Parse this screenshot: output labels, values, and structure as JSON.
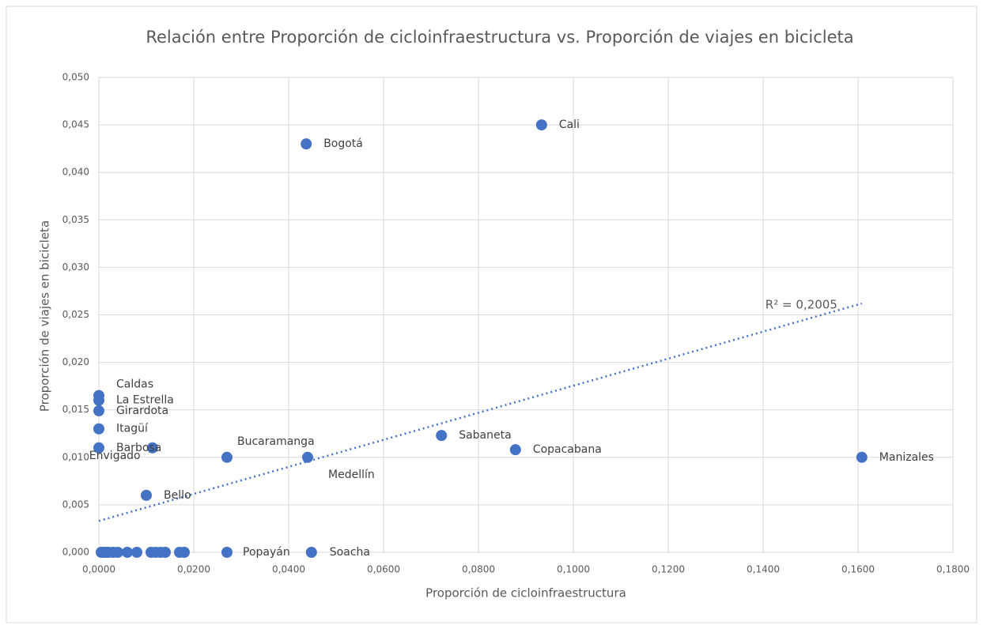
{
  "chart_data": {
    "type": "scatter",
    "title": "Relación entre Proporción de cicloinfraestructura vs. Proporción de viajes en bicicleta",
    "x_label": "Proporción de cicloinfraestructura",
    "y_label": "Proporción de viajes en bicicleta",
    "color": "#4472c4",
    "labels": [
      "Cali",
      "Bogotá",
      "Manizales",
      "Copacabana",
      "Sabaneta",
      "Medellín",
      "Bucaramanga",
      "Envigado",
      "Bello",
      "Caldas",
      "La Estrella",
      "Girardota",
      "Itagüí",
      "Barbosa",
      "Soacha",
      "Popayán",
      null,
      null,
      null,
      null,
      null,
      null,
      null,
      null,
      null,
      null,
      null,
      null,
      null,
      null
    ],
    "x": [
      0.0933,
      0.0437,
      0.1608,
      0.0878,
      0.0722,
      0.044,
      0.027,
      0.0113,
      0.01,
      0,
      0,
      0,
      0,
      0,
      0.0448,
      0.027,
      0.0005,
      0.001,
      0.0015,
      0.002,
      0.003,
      0.004,
      0.006,
      0.008,
      0.011,
      0.012,
      0.013,
      0.014,
      0.017,
      0.018
    ],
    "values": [
      0.045,
      0.043,
      0.01,
      0.0108,
      0.0123,
      0.01,
      0.01,
      0.011,
      0.006,
      0.0165,
      0.016,
      0.0149,
      0.013,
      0.011,
      0,
      0,
      0,
      0,
      0,
      0,
      0,
      0,
      0,
      0,
      0,
      0,
      0,
      0,
      0,
      0
    ],
    "trendline": {
      "x": [
        0,
        0.1608
      ],
      "y": [
        0.0033,
        0.0262
      ],
      "annotation": "R² = 0,2005"
    },
    "xlim": [
      0,
      0.18
    ],
    "xticks": [
      {
        "value": 0,
        "label": "0,0000"
      },
      {
        "value": 0.02,
        "label": "0,0200"
      },
      {
        "value": 0.04,
        "label": "0,0400"
      },
      {
        "value": 0.06,
        "label": "0,0600"
      },
      {
        "value": 0.08,
        "label": "0,0800"
      },
      {
        "value": 0.1,
        "label": "0,1000"
      },
      {
        "value": 0.12,
        "label": "0,1200"
      },
      {
        "value": 0.14,
        "label": "0,1400"
      },
      {
        "value": 0.16,
        "label": "0,1600"
      },
      {
        "value": 0.18,
        "label": "0,1800"
      }
    ],
    "ylim": [
      0,
      0.05
    ],
    "yticks": [
      {
        "value": 0,
        "label": "0,000"
      },
      {
        "value": 0.005,
        "label": "0,005"
      },
      {
        "value": 0.01,
        "label": "0,010"
      },
      {
        "value": 0.015,
        "label": "0,015"
      },
      {
        "value": 0.02,
        "label": "0,020"
      },
      {
        "value": 0.025,
        "label": "0,025"
      },
      {
        "value": 0.03,
        "label": "0,030"
      },
      {
        "value": 0.035,
        "label": "0,035"
      },
      {
        "value": 0.04,
        "label": "0,040"
      },
      {
        "value": 0.045,
        "label": "0,045"
      },
      {
        "value": 0.05,
        "label": "0,050"
      }
    ],
    "grid": true
  }
}
